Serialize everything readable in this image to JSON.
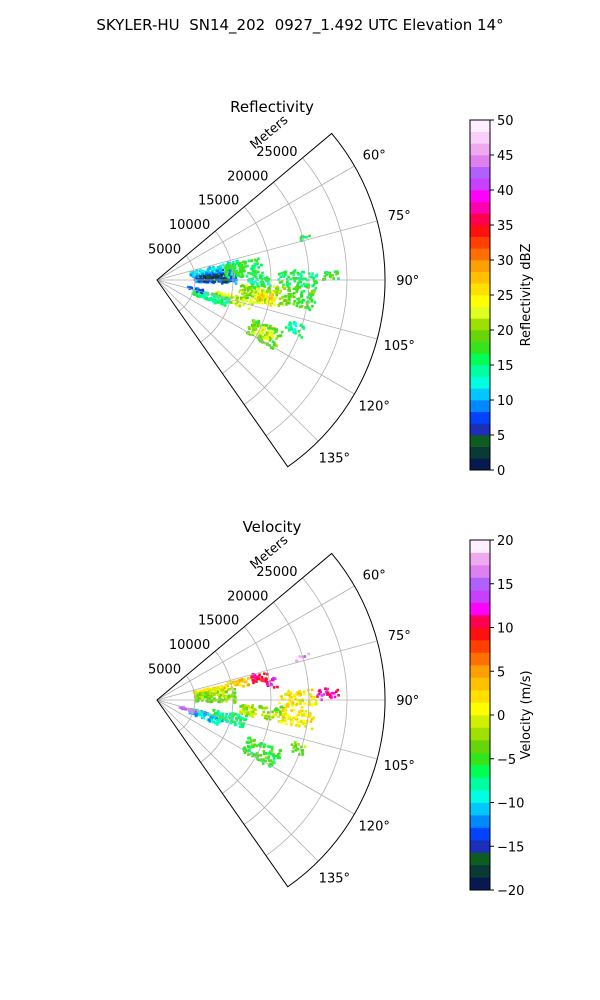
{
  "title": "SKYLER-HU  SN14_202  0927_1.492 UTC Elevation 14°",
  "chart_data": [
    {
      "type": "polar-ppi",
      "title": "Reflectivity",
      "range_label": "Meters",
      "theta_range_deg": [
        50,
        145
      ],
      "theta_ticks": [
        60,
        75,
        90,
        105,
        120,
        135
      ],
      "theta_tick_labels": [
        "60°",
        "75°",
        "90°",
        "105°",
        "120°",
        "135°"
      ],
      "r_max": 30000,
      "r_ticks": [
        5000,
        10000,
        15000,
        20000,
        25000
      ],
      "r_tick_labels": [
        "5000",
        "10000",
        "15000",
        "20000",
        "25000"
      ],
      "grid": true,
      "colorbar": {
        "label": "Reflectivity dBZ",
        "min": 0,
        "max": 50,
        "ticks": [
          0,
          5,
          10,
          15,
          20,
          25,
          30,
          35,
          40,
          45,
          50
        ],
        "tick_labels": [
          "0",
          "5",
          "10",
          "15",
          "20",
          "25",
          "30",
          "35",
          "40",
          "45",
          "50"
        ],
        "stops": [
          "#08194f",
          "#0a3a34",
          "#0f5c20",
          "#1d2fb8",
          "#0044ff",
          "#0088ff",
          "#00c8ff",
          "#00ffe0",
          "#00ffa0",
          "#00ff55",
          "#33e51a",
          "#66d60a",
          "#a0e000",
          "#e0ff20",
          "#ffff00",
          "#ffe000",
          "#ffc000",
          "#ff9f00",
          "#ff7000",
          "#ff4000",
          "#ff1010",
          "#ff0050",
          "#ff00b0",
          "#ff00ff",
          "#c840ff",
          "#b060ff",
          "#e080f0",
          "#f0a8f0",
          "#f8d0f8",
          "#ffeeff"
        ]
      },
      "echo_regions": [
        {
          "az": [
            77,
            85
          ],
          "r": [
            4500,
            8500
          ],
          "value": 12
        },
        {
          "az": [
            81,
            93
          ],
          "r": [
            5000,
            10500
          ],
          "value": 9
        },
        {
          "az": [
            85,
            92
          ],
          "r": [
            5500,
            9500
          ],
          "value": 4
        },
        {
          "az": [
            76,
            80
          ],
          "r": [
            8500,
            11000
          ],
          "value": 13
        },
        {
          "az": [
            78,
            88
          ],
          "r": [
            9000,
            14000
          ],
          "value": 17
        },
        {
          "az": [
            88,
            95
          ],
          "r": [
            12000,
            15000
          ],
          "value": 15
        },
        {
          "az": [
            86,
            93
          ],
          "r": [
            16000,
            21000
          ],
          "value": 16
        },
        {
          "az": [
            87,
            90
          ],
          "r": [
            21000,
            24000
          ],
          "value": 17
        },
        {
          "az": [
            93,
            102
          ],
          "r": [
            11000,
            17000
          ],
          "value": 20
        },
        {
          "az": [
            95,
            103
          ],
          "r": [
            13000,
            16000
          ],
          "value": 23
        },
        {
          "az": [
            97,
            101
          ],
          "r": [
            13500,
            15500
          ],
          "value": 26
        },
        {
          "az": [
            92,
            101
          ],
          "r": [
            17000,
            21000
          ],
          "value": 18
        },
        {
          "az": [
            101,
            108
          ],
          "r": [
            8000,
            13000
          ],
          "value": 22
        },
        {
          "az": [
            104,
            112
          ],
          "r": [
            5000,
            10000
          ],
          "value": 15
        },
        {
          "az": [
            102,
            106
          ],
          "r": [
            4000,
            6500
          ],
          "value": 8
        },
        {
          "az": [
            112,
            121
          ],
          "r": [
            13500,
            18000
          ],
          "value": 19
        },
        {
          "az": [
            114,
            119
          ],
          "r": [
            14500,
            17000
          ],
          "value": 23
        },
        {
          "az": [
            107,
            112
          ],
          "r": [
            18000,
            20500
          ],
          "value": 14
        },
        {
          "az": [
            73,
            75
          ],
          "r": [
            19000,
            21000
          ],
          "value": 16
        }
      ]
    },
    {
      "type": "polar-ppi",
      "title": "Velocity",
      "range_label": "Meters",
      "theta_range_deg": [
        50,
        145
      ],
      "theta_ticks": [
        60,
        75,
        90,
        105,
        120,
        135
      ],
      "theta_tick_labels": [
        "60°",
        "75°",
        "90°",
        "105°",
        "120°",
        "135°"
      ],
      "r_max": 30000,
      "r_ticks": [
        5000,
        10000,
        15000,
        20000,
        25000
      ],
      "r_tick_labels": [
        "5000",
        "10000",
        "15000",
        "20000",
        "25000"
      ],
      "grid": true,
      "colorbar": {
        "label": "Velocity (m/s)",
        "min": -20,
        "max": 20,
        "ticks": [
          -20,
          -15,
          -10,
          -5,
          0,
          5,
          10,
          15,
          20
        ],
        "tick_labels": [
          "−20",
          "−15",
          "−10",
          "−5",
          "0",
          "5",
          "10",
          "15",
          "20"
        ],
        "stops": [
          "#08194f",
          "#0a3a34",
          "#0f5c20",
          "#1d2fb8",
          "#0044ff",
          "#0088ff",
          "#00c8ff",
          "#00ffe0",
          "#00ffa0",
          "#00ff55",
          "#33e51a",
          "#66d60a",
          "#a0e000",
          "#d0f000",
          "#ffff00",
          "#ffe000",
          "#ffc000",
          "#ff9f00",
          "#ff7000",
          "#ff4000",
          "#ff1010",
          "#ff0050",
          "#ff00ff",
          "#c840ff",
          "#b060ff",
          "#e080f0",
          "#f0a8f0",
          "#ffeeff"
        ]
      },
      "echo_regions": [
        {
          "az": [
            77,
            85
          ],
          "r": [
            5000,
            9000
          ],
          "value": 1
        },
        {
          "az": [
            81,
            92
          ],
          "r": [
            5000,
            10500
          ],
          "value": -3
        },
        {
          "az": [
            76,
            81
          ],
          "r": [
            9000,
            12500
          ],
          "value": 3
        },
        {
          "az": [
            75,
            80
          ],
          "r": [
            12500,
            15000
          ],
          "value": 10
        },
        {
          "az": [
            79,
            84
          ],
          "r": [
            14500,
            16000
          ],
          "value": 12
        },
        {
          "az": [
            86,
            93
          ],
          "r": [
            16000,
            21000
          ],
          "value": 1
        },
        {
          "az": [
            86,
            90
          ],
          "r": [
            21000,
            24000
          ],
          "value": 11
        },
        {
          "az": [
            73,
            75
          ],
          "r": [
            19000,
            21000
          ],
          "value": 17
        },
        {
          "az": [
            93,
            100
          ],
          "r": [
            11000,
            17000
          ],
          "value": -2
        },
        {
          "az": [
            94,
            101
          ],
          "r": [
            16500,
            21000
          ],
          "value": 1
        },
        {
          "az": [
            100,
            108
          ],
          "r": [
            7500,
            12000
          ],
          "value": -7
        },
        {
          "az": [
            104,
            112
          ],
          "r": [
            4500,
            9000
          ],
          "value": -10
        },
        {
          "az": [
            105,
            109
          ],
          "r": [
            3000,
            5500
          ],
          "value": 16
        },
        {
          "az": [
            112,
            121
          ],
          "r": [
            13000,
            18000
          ],
          "value": -5
        },
        {
          "az": [
            107,
            111
          ],
          "r": [
            18500,
            20500
          ],
          "value": -3
        }
      ]
    }
  ]
}
